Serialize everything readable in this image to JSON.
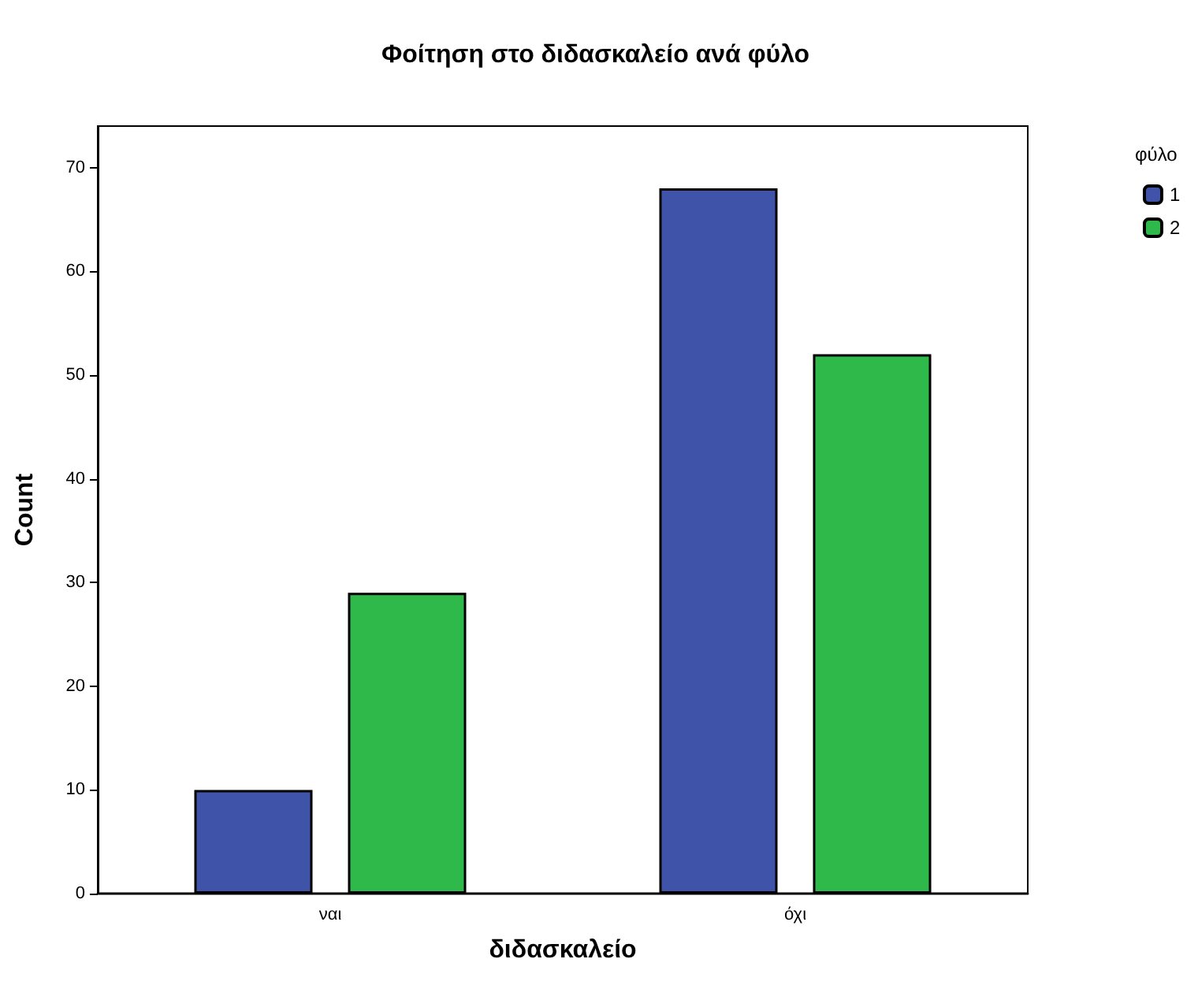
{
  "chart_data": {
    "type": "bar",
    "title": "Φοίτηση στο διδασκαλείο ανά φύλο",
    "xlabel": "διδασκαλείο",
    "ylabel": "Count",
    "legend_title": "φύλο",
    "categories": [
      "ναι",
      "όχι"
    ],
    "series": [
      {
        "name": "1",
        "color": "#3f54a8",
        "values": [
          10,
          68
        ]
      },
      {
        "name": "2",
        "color": "#2eb94a",
        "values": [
          29,
          52
        ]
      }
    ],
    "ylim": [
      0,
      74
    ],
    "yticks": [
      0,
      10,
      20,
      30,
      40,
      50,
      60,
      70
    ],
    "grid": false,
    "legend": "top right"
  }
}
